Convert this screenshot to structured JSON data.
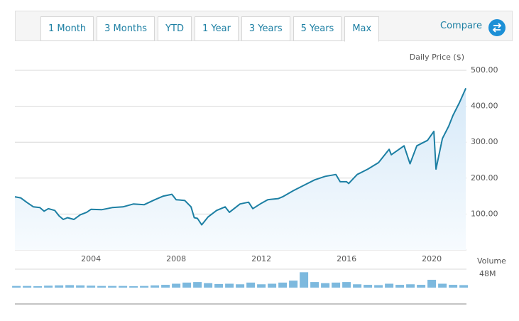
{
  "toolbar": {
    "tabs": [
      "1 Month",
      "3 Months",
      "YTD",
      "1 Year",
      "3 Years",
      "5 Years",
      "Max"
    ],
    "active_tab": 6,
    "compare": "Compare"
  },
  "chart_data": [
    {
      "type": "area",
      "y_label": "Daily Price ($)",
      "color": "#1c7fa3",
      "fill": "#e8f3fb",
      "grid": true,
      "x": [
        2000.43,
        2000.7,
        2001.0,
        2001.3,
        2001.6,
        2001.8,
        2002.0,
        2002.3,
        2002.5,
        2002.7,
        2002.9,
        2003.2,
        2003.5,
        2003.8,
        2004.0,
        2004.5,
        2005.0,
        2005.5,
        2006.0,
        2006.5,
        2007.0,
        2007.4,
        2007.8,
        2008.0,
        2008.4,
        2008.7,
        2008.85,
        2009.0,
        2009.2,
        2009.5,
        2009.9,
        2010.3,
        2010.5,
        2011.0,
        2011.4,
        2011.6,
        2012.0,
        2012.3,
        2012.8,
        2013.0,
        2013.5,
        2014.0,
        2014.5,
        2015.0,
        2015.5,
        2015.7,
        2016.0,
        2016.1,
        2016.5,
        2017.0,
        2017.5,
        2018.0,
        2018.1,
        2018.7,
        2018.98,
        2019.3,
        2019.8,
        2020.1,
        2020.2,
        2020.5,
        2020.8,
        2021.0,
        2021.3,
        2021.6
      ],
      "values": [
        148,
        145,
        132,
        120,
        118,
        108,
        115,
        110,
        95,
        85,
        90,
        85,
        98,
        105,
        113,
        112,
        118,
        120,
        128,
        126,
        140,
        150,
        155,
        140,
        138,
        120,
        90,
        88,
        70,
        92,
        110,
        120,
        105,
        128,
        133,
        115,
        130,
        140,
        143,
        148,
        165,
        180,
        195,
        205,
        210,
        190,
        190,
        185,
        210,
        225,
        243,
        280,
        265,
        290,
        240,
        290,
        305,
        330,
        225,
        310,
        345,
        375,
        410,
        450
      ],
      "xlim": [
        2000.43,
        2021.63
      ],
      "xticks": [
        2004,
        2008,
        2012,
        2016,
        2020
      ],
      "ylim": [
        0,
        500
      ],
      "yticks": [
        {
          "value": 100,
          "label": "100.00"
        },
        {
          "value": 200,
          "label": "200.00"
        },
        {
          "value": 300,
          "label": "300.00"
        },
        {
          "value": 400,
          "label": "400.00"
        },
        {
          "value": 500,
          "label": "500.00"
        }
      ]
    },
    {
      "type": "bar",
      "y_label": "Volume",
      "color": "#7db9de",
      "x": [
        2000.5,
        2001,
        2001.5,
        2002,
        2002.5,
        2003,
        2003.5,
        2004,
        2004.5,
        2005,
        2005.5,
        2006,
        2006.5,
        2007,
        2007.5,
        2008,
        2008.5,
        2009,
        2009.5,
        2010,
        2010.5,
        2011,
        2011.5,
        2012,
        2012.5,
        2013,
        2013.5,
        2014,
        2014.5,
        2015,
        2015.5,
        2016,
        2016.5,
        2017,
        2017.5,
        2018,
        2018.5,
        2019,
        2019.5,
        2020,
        2020.5,
        2021,
        2021.5
      ],
      "values": [
        6,
        6,
        5,
        7,
        8,
        9,
        8,
        7,
        6,
        6,
        6,
        5,
        6,
        8,
        10,
        14,
        18,
        20,
        16,
        13,
        14,
        12,
        18,
        12,
        14,
        18,
        25,
        55,
        20,
        16,
        18,
        20,
        12,
        10,
        9,
        14,
        10,
        12,
        10,
        28,
        14,
        10,
        9
      ],
      "xlim": [
        2000.43,
        2021.63
      ],
      "ylim": [
        0,
        66
      ],
      "yticks": [
        {
          "value": 48,
          "label": "48M"
        }
      ]
    }
  ]
}
